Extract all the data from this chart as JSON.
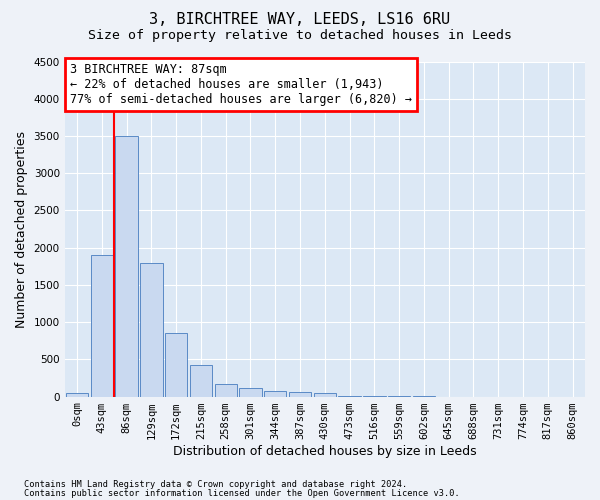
{
  "title1": "3, BIRCHTREE WAY, LEEDS, LS16 6RU",
  "title2": "Size of property relative to detached houses in Leeds",
  "xlabel": "Distribution of detached houses by size in Leeds",
  "ylabel": "Number of detached properties",
  "categories": [
    "0sqm",
    "43sqm",
    "86sqm",
    "129sqm",
    "172sqm",
    "215sqm",
    "258sqm",
    "301sqm",
    "344sqm",
    "387sqm",
    "430sqm",
    "473sqm",
    "516sqm",
    "559sqm",
    "602sqm",
    "645sqm",
    "688sqm",
    "731sqm",
    "774sqm",
    "817sqm",
    "860sqm"
  ],
  "values": [
    50,
    1900,
    3500,
    1800,
    850,
    430,
    175,
    110,
    80,
    60,
    50,
    10,
    5,
    3,
    2,
    1,
    1,
    1,
    0,
    0,
    0
  ],
  "bar_color": "#c9d9f0",
  "bar_edge_color": "#5a8ac6",
  "vline_x": 1.5,
  "vline_color": "red",
  "annotation_text": "3 BIRCHTREE WAY: 87sqm\n← 22% of detached houses are smaller (1,943)\n77% of semi-detached houses are larger (6,820) →",
  "annotation_box_color": "red",
  "annotation_fill": "white",
  "ylim": [
    0,
    4500
  ],
  "yticks": [
    0,
    500,
    1000,
    1500,
    2000,
    2500,
    3000,
    3500,
    4000,
    4500
  ],
  "footer1": "Contains HM Land Registry data © Crown copyright and database right 2024.",
  "footer2": "Contains public sector information licensed under the Open Government Licence v3.0.",
  "bg_color": "#eef2f8",
  "plot_bg_color": "#dce8f5",
  "grid_color": "white",
  "title1_fontsize": 11,
  "title2_fontsize": 9.5,
  "tick_fontsize": 7.5,
  "label_fontsize": 9,
  "annotation_fontsize": 8.5
}
